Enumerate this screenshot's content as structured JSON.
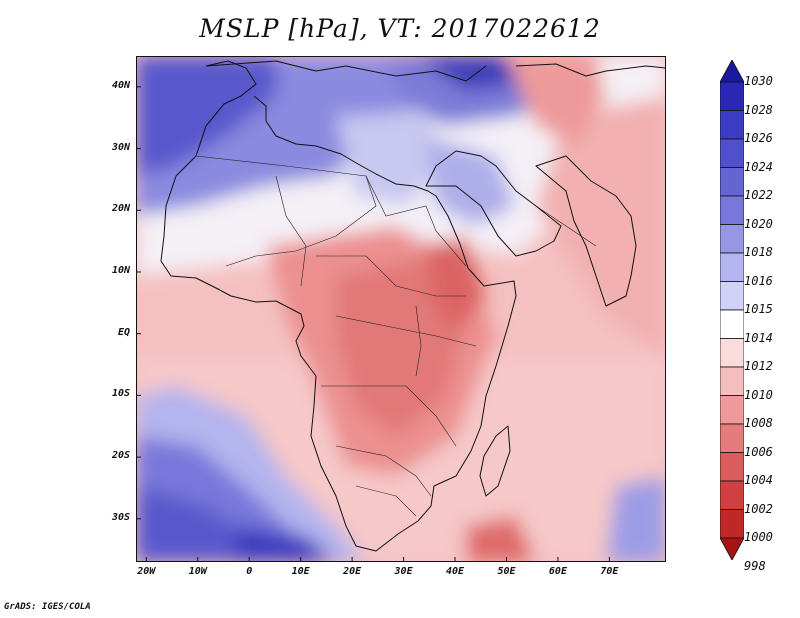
{
  "title": "MSLP [hPa], VT: 2017022612",
  "footer": "GrADS: IGES/COLA",
  "map": {
    "lon_range": [
      -22,
      81
    ],
    "lat_range": [
      -37,
      45
    ],
    "lat_labels": [
      "40N",
      "30N",
      "20N",
      "10N",
      "EQ",
      "10S",
      "20S",
      "30S"
    ],
    "lat_values": [
      40,
      30,
      20,
      10,
      0,
      -10,
      -20,
      -30
    ],
    "lon_labels": [
      "20W",
      "10W",
      "0",
      "10E",
      "20E",
      "30E",
      "40E",
      "50E",
      "60E",
      "70E"
    ],
    "lon_values": [
      -20,
      -10,
      0,
      10,
      20,
      30,
      40,
      50,
      60,
      70
    ]
  },
  "colorbar": {
    "levels": [
      "1030",
      "1028",
      "1026",
      "1024",
      "1022",
      "1020",
      "1018",
      "1016",
      "1015",
      "1014",
      "1012",
      "1010",
      "1008",
      "1006",
      "1004",
      "1002",
      "1000",
      "998"
    ],
    "colors": [
      "#1a1aa0",
      "#2828b4",
      "#3c3cc4",
      "#5050cc",
      "#6464d2",
      "#7878dc",
      "#9696e6",
      "#b4b4ee",
      "#d2d2f8",
      "#ffffff",
      "#fadcdc",
      "#f5bebe",
      "#ee9a9a",
      "#e47c7c",
      "#da5c5c",
      "#d04040",
      "#c02828",
      "#a81414"
    ]
  }
}
